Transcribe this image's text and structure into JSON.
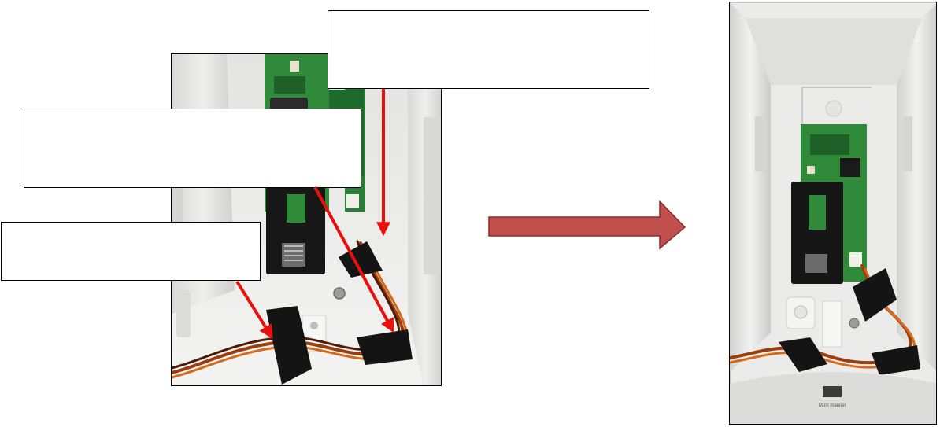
{
  "callouts": {
    "top": "",
    "middle": "",
    "bottom": ""
  },
  "icons": {
    "step_arrow": "right-arrow-icon",
    "pointer": "red-pointer-arrow"
  },
  "colors": {
    "pointer_red": "#e8100c",
    "step_arrow_fill": "#c0504d",
    "step_arrow_stroke": "#8b2b29",
    "pcb_green": "#2f8a3a",
    "housing": "#e9e9e7",
    "tape": "#141414"
  },
  "photo_right": {
    "tag_label": "Multi manuel"
  }
}
